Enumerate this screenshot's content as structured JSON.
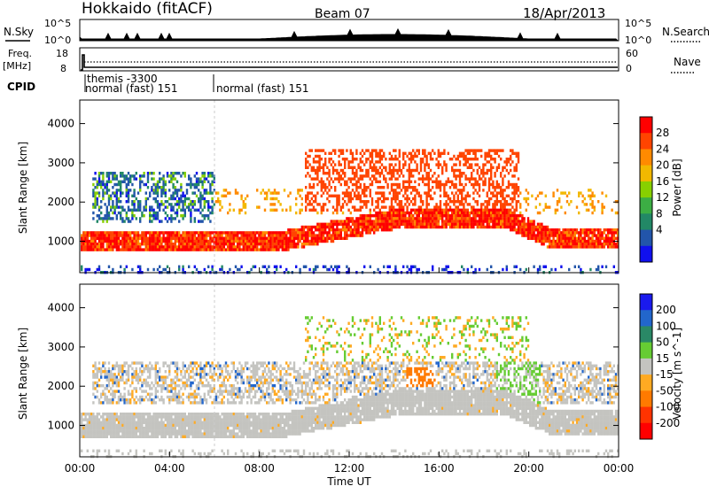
{
  "header": {
    "radar": "Hokkaido (fitACF)",
    "beam": "Beam 07",
    "date": "18/Apr/2013"
  },
  "status_panels": {
    "nsky_label": "N.Sky",
    "nsearch_label": "N.Search",
    "freq_label_line1": "Freq.",
    "freq_label_line2": "[MHz]",
    "nave_label": "Nave",
    "cpid_label": "CPID",
    "nsky_ticks": [
      "10^5",
      "10^0"
    ],
    "nsearch_ticks": [
      "10^5",
      "10^0"
    ],
    "freq_ticks": [
      "18",
      "8"
    ],
    "nave_ticks": [
      "60",
      "0"
    ],
    "cpid_entries": [
      {
        "start": "00:30",
        "text": "themis -3300"
      },
      {
        "start": "00:30",
        "text": "normal (fast) 151"
      },
      {
        "start": "06:00",
        "text": "normal (fast) 151"
      }
    ]
  },
  "chart_data": [
    {
      "type": "heatmap",
      "name": "Power",
      "ylabel": "Slant Range [km]",
      "ylim": [
        200,
        4600
      ],
      "y_ticks": [
        "1000",
        "2000",
        "3000",
        "4000"
      ],
      "colorbar_label": "Power [dB]",
      "colorbar_ticks": [
        "28",
        "24",
        "20",
        "16",
        "12",
        "8",
        "4"
      ],
      "colorbar_colors": [
        "#ff0000",
        "#ff4400",
        "#ff8a00",
        "#f2b800",
        "#88d000",
        "#3cae44",
        "#228866",
        "#2255aa",
        "#1010ee"
      ],
      "features": [
        {
          "time_start": "00:00",
          "time_end": "24:00",
          "range_center_km": 1100,
          "desc": "band"
        },
        {
          "time_start": "00:30",
          "time_end": "06:00",
          "range_center_km": 2100,
          "desc": "weak"
        }
      ]
    },
    {
      "type": "heatmap",
      "name": "Velocity",
      "ylabel": "Slant Range [km]",
      "ylim": [
        200,
        4600
      ],
      "y_ticks": [
        "1000",
        "2000",
        "3000",
        "4000"
      ],
      "colorbar_label": "Velocity [m s^-1]",
      "colorbar_ticks": [
        "200",
        "100",
        "50",
        "15",
        "-15",
        "-50",
        "-100",
        "-200"
      ],
      "colorbar_colors": [
        "#1a1aee",
        "#2266cc",
        "#2a8866",
        "#66cc33",
        "#c4c4c0",
        "#ffaa22",
        "#ff7a00",
        "#ff3300",
        "#ff0000"
      ]
    }
  ],
  "x_axis": {
    "label": "Time UT",
    "ticks": [
      "00:00",
      "04:00",
      "08:00",
      "12:00",
      "16:00",
      "20:00",
      "00:00"
    ]
  }
}
